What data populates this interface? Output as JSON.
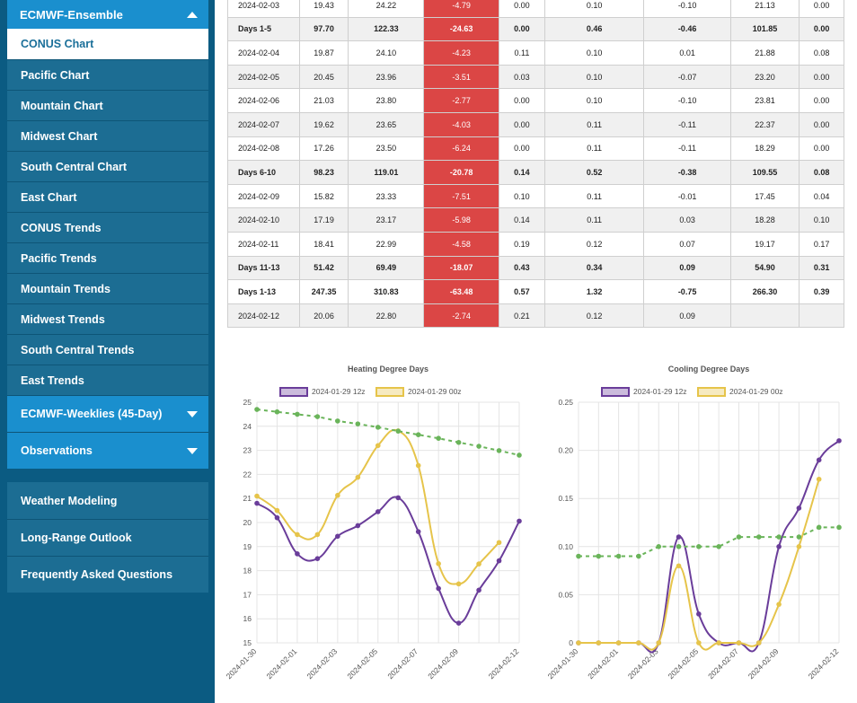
{
  "sidebar": {
    "group_title": "ECMWF-Ensemble",
    "items": [
      {
        "label": "CONUS Chart",
        "active": true
      },
      {
        "label": "Pacific Chart"
      },
      {
        "label": "Mountain Chart"
      },
      {
        "label": "Midwest Chart"
      },
      {
        "label": "South Central Chart"
      },
      {
        "label": "East Chart"
      },
      {
        "label": "CONUS Trends"
      },
      {
        "label": "Pacific Trends"
      },
      {
        "label": "Mountain Trends"
      },
      {
        "label": "Midwest Trends"
      },
      {
        "label": "South Central Trends"
      },
      {
        "label": "East Trends"
      }
    ],
    "dropdowns": [
      {
        "label": "ECMWF-Weeklies (45-Day)"
      },
      {
        "label": "Observations"
      }
    ],
    "links": [
      {
        "label": "Weather Modeling"
      },
      {
        "label": "Long-Range Outlook"
      },
      {
        "label": "Frequently Asked Questions"
      }
    ]
  },
  "table": {
    "rows": [
      {
        "cells": [
          "2024-02-03",
          "19.43",
          "24.22",
          "-4.79",
          "0.00",
          "0.10",
          "-0.10",
          "21.13",
          "0.00"
        ],
        "bold": false
      },
      {
        "cells": [
          "Days 1-5",
          "97.70",
          "122.33",
          "-24.63",
          "0.00",
          "0.46",
          "-0.46",
          "101.85",
          "0.00"
        ],
        "bold": true
      },
      {
        "cells": [
          "2024-02-04",
          "19.87",
          "24.10",
          "-4.23",
          "0.11",
          "0.10",
          "0.01",
          "21.88",
          "0.08"
        ],
        "bold": false
      },
      {
        "cells": [
          "2024-02-05",
          "20.45",
          "23.96",
          "-3.51",
          "0.03",
          "0.10",
          "-0.07",
          "23.20",
          "0.00"
        ],
        "bold": false
      },
      {
        "cells": [
          "2024-02-06",
          "21.03",
          "23.80",
          "-2.77",
          "0.00",
          "0.10",
          "-0.10",
          "23.81",
          "0.00"
        ],
        "bold": false
      },
      {
        "cells": [
          "2024-02-07",
          "19.62",
          "23.65",
          "-4.03",
          "0.00",
          "0.11",
          "-0.11",
          "22.37",
          "0.00"
        ],
        "bold": false
      },
      {
        "cells": [
          "2024-02-08",
          "17.26",
          "23.50",
          "-6.24",
          "0.00",
          "0.11",
          "-0.11",
          "18.29",
          "0.00"
        ],
        "bold": false
      },
      {
        "cells": [
          "Days 6-10",
          "98.23",
          "119.01",
          "-20.78",
          "0.14",
          "0.52",
          "-0.38",
          "109.55",
          "0.08"
        ],
        "bold": true
      },
      {
        "cells": [
          "2024-02-09",
          "15.82",
          "23.33",
          "-7.51",
          "0.10",
          "0.11",
          "-0.01",
          "17.45",
          "0.04"
        ],
        "bold": false
      },
      {
        "cells": [
          "2024-02-10",
          "17.19",
          "23.17",
          "-5.98",
          "0.14",
          "0.11",
          "0.03",
          "18.28",
          "0.10"
        ],
        "bold": false
      },
      {
        "cells": [
          "2024-02-11",
          "18.41",
          "22.99",
          "-4.58",
          "0.19",
          "0.12",
          "0.07",
          "19.17",
          "0.17"
        ],
        "bold": false
      },
      {
        "cells": [
          "Days 11-13",
          "51.42",
          "69.49",
          "-18.07",
          "0.43",
          "0.34",
          "0.09",
          "54.90",
          "0.31"
        ],
        "bold": true
      },
      {
        "cells": [
          "Days 1-13",
          "247.35",
          "310.83",
          "-63.48",
          "0.57",
          "1.32",
          "-0.75",
          "266.30",
          "0.39"
        ],
        "bold": true
      },
      {
        "cells": [
          "2024-02-12",
          "20.06",
          "22.80",
          "-2.74",
          "0.21",
          "0.12",
          "0.09",
          "",
          ""
        ],
        "bold": false
      }
    ],
    "negative_color": "#db4645"
  },
  "chart_data": [
    {
      "type": "line",
      "title": "Heating Degree Days",
      "x": [
        "2024-01-30",
        "2024-01-31",
        "2024-02-01",
        "2024-02-02",
        "2024-02-03",
        "2024-02-04",
        "2024-02-05",
        "2024-02-06",
        "2024-02-07",
        "2024-02-08",
        "2024-02-09",
        "2024-02-10",
        "2024-02-11",
        "2024-02-12"
      ],
      "x_ticks": [
        "2024-01-30",
        "2024-02-01",
        "2024-02-03",
        "2024-02-05",
        "2024-02-07",
        "2024-02-09",
        "2024-02-12"
      ],
      "ylim": [
        15,
        25
      ],
      "y_ticks": [
        15,
        16,
        17,
        18,
        19,
        20,
        21,
        22,
        23,
        24,
        25
      ],
      "series": [
        {
          "name": "2024-01-29 12z",
          "color": "#6a3d9a",
          "values": [
            20.8,
            20.2,
            18.7,
            18.5,
            19.43,
            19.87,
            20.45,
            21.03,
            19.62,
            17.26,
            15.82,
            17.19,
            18.41,
            20.06
          ]
        },
        {
          "name": "2024-01-29 00z",
          "color": "#e6c44a",
          "values": [
            21.1,
            20.5,
            19.5,
            19.5,
            21.13,
            21.88,
            23.2,
            23.81,
            22.37,
            18.29,
            17.45,
            18.28,
            19.17,
            null
          ]
        },
        {
          "name": "",
          "color": "#6ab45a",
          "dashed": true,
          "values": [
            24.7,
            24.6,
            24.5,
            24.4,
            24.22,
            24.1,
            23.96,
            23.8,
            23.65,
            23.5,
            23.33,
            23.17,
            22.99,
            22.8
          ]
        }
      ],
      "legend": "top"
    },
    {
      "type": "line",
      "title": "Cooling Degree Days",
      "x": [
        "2024-01-30",
        "2024-01-31",
        "2024-02-01",
        "2024-02-02",
        "2024-02-03",
        "2024-02-04",
        "2024-02-05",
        "2024-02-06",
        "2024-02-07",
        "2024-02-08",
        "2024-02-09",
        "2024-02-10",
        "2024-02-11",
        "2024-02-12"
      ],
      "x_ticks": [
        "2024-01-30",
        "2024-02-01",
        "2024-02-03",
        "2024-02-05",
        "2024-02-07",
        "2024-02-09",
        "2024-02-12"
      ],
      "ylim": [
        0,
        0.25
      ],
      "y_ticks": [
        "0",
        "0.05",
        "0.10",
        "0.15",
        "0.20",
        "0.25"
      ],
      "series": [
        {
          "name": "2024-01-29 12z",
          "color": "#6a3d9a",
          "values": [
            0,
            0,
            0,
            0,
            0,
            0.11,
            0.03,
            0,
            0,
            0,
            0.1,
            0.14,
            0.19,
            0.21
          ]
        },
        {
          "name": "2024-01-29 00z",
          "color": "#e6c44a",
          "values": [
            0,
            0,
            0,
            0,
            0,
            0.08,
            0,
            0,
            0,
            0,
            0.04,
            0.1,
            0.17,
            null
          ]
        },
        {
          "name": "",
          "color": "#6ab45a",
          "dashed": true,
          "values": [
            0.09,
            0.09,
            0.09,
            0.09,
            0.1,
            0.1,
            0.1,
            0.1,
            0.11,
            0.11,
            0.11,
            0.11,
            0.12,
            0.12
          ]
        }
      ],
      "legend": "top"
    }
  ]
}
